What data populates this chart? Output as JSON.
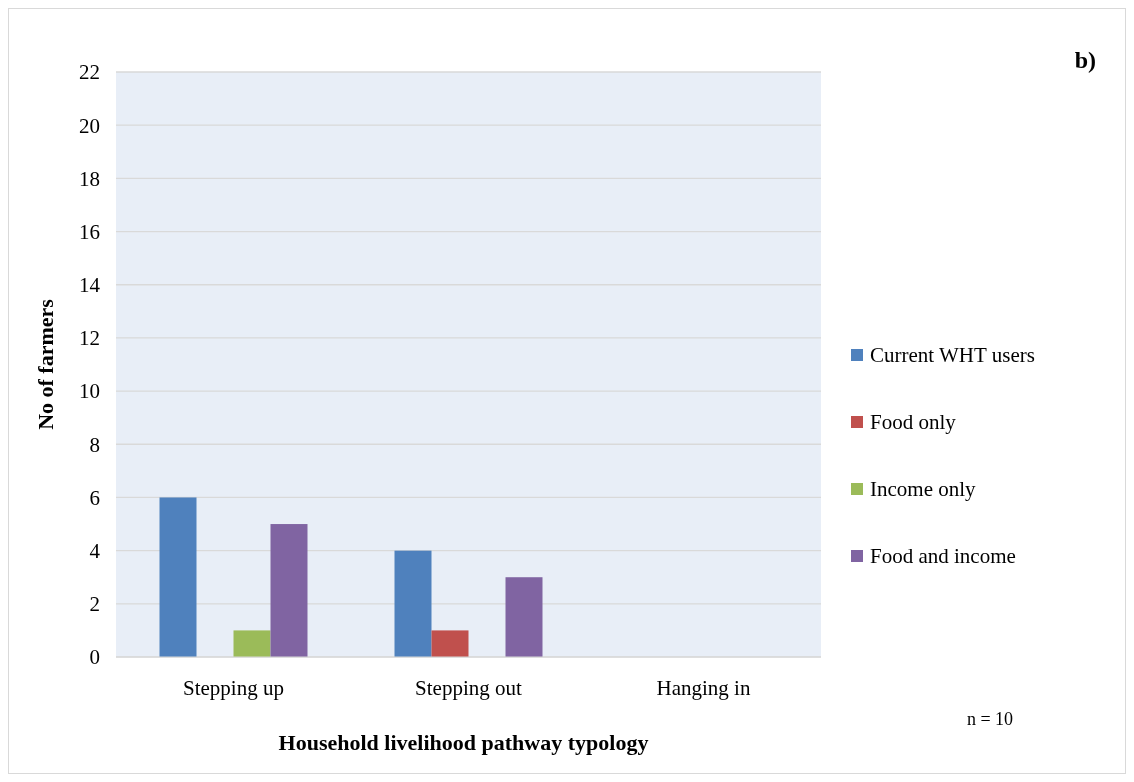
{
  "chart_data": {
    "type": "bar",
    "xlabel": "Household livelihood pathway typology",
    "ylabel": "No of farmers",
    "categories": [
      "Stepping up",
      "Stepping out",
      "Hanging in"
    ],
    "series": [
      {
        "name": "Current WHT users",
        "color": "#4f81bd",
        "values": [
          6,
          4,
          0
        ]
      },
      {
        "name": "Food only",
        "color": "#c0504d",
        "values": [
          0,
          1,
          0
        ]
      },
      {
        "name": "Income only",
        "color": "#9bbb59",
        "values": [
          1,
          0,
          0
        ]
      },
      {
        "name": "Food and income",
        "color": "#8064a2",
        "values": [
          5,
          3,
          0
        ]
      }
    ],
    "ylim": [
      0,
      22
    ],
    "yticks": [
      0,
      2,
      4,
      6,
      8,
      10,
      12,
      14,
      16,
      18,
      20,
      22
    ],
    "grid": "y",
    "legend": "right",
    "annotations": [
      "b)",
      "n = 10"
    ]
  }
}
